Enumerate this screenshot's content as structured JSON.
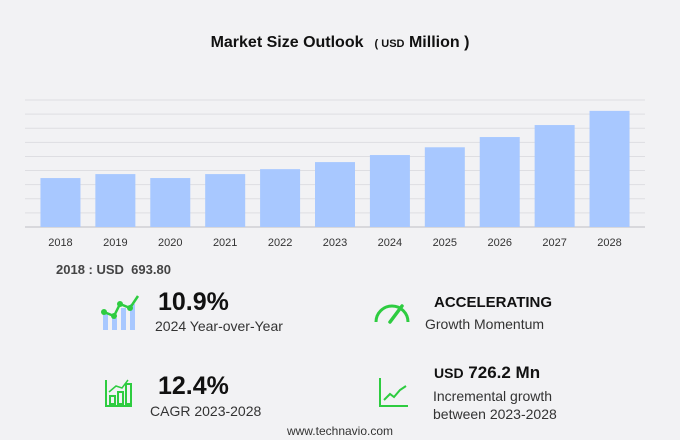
{
  "chart_data": {
    "type": "bar",
    "title": "Market Size Outlook",
    "unit_prefix": "USD",
    "unit": "Million",
    "categories": [
      "2018",
      "2019",
      "2020",
      "2021",
      "2022",
      "2023",
      "2024",
      "2025",
      "2026",
      "2027",
      "2028"
    ],
    "values": [
      693.8,
      750,
      694,
      750,
      820,
      920,
      1020,
      1130,
      1275,
      1445,
      1646
    ],
    "ylim": [
      0,
      1800
    ],
    "grid": true,
    "bar_color": "#a8c8ff"
  },
  "base_year": {
    "label": "2018 : USD",
    "value": "693.80"
  },
  "stats": {
    "yoy": {
      "value": "10.9%",
      "label": "2024 Year-over-Year"
    },
    "momentum": {
      "value": "ACCELERATING",
      "label": "Growth Momentum"
    },
    "cagr": {
      "value": "12.4%",
      "label": "CAGR 2023-2028"
    },
    "incremental": {
      "prefix": "USD",
      "value": "726.2 Mn",
      "label1": "Incremental growth",
      "label2": "between 2023-2028"
    }
  },
  "footer": "www.technavio.com",
  "accent": "#2ecc40"
}
